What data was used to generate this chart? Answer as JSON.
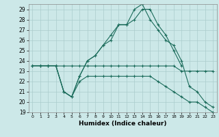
{
  "title": "",
  "xlabel": "Humidex (Indice chaleur)",
  "ylabel": "",
  "background_color": "#cce8e8",
  "grid_color": "#aacccc",
  "line_color": "#1a6b5a",
  "xlim": [
    -0.5,
    23.5
  ],
  "ylim": [
    19,
    29.5
  ],
  "yticks": [
    19,
    20,
    21,
    22,
    23,
    24,
    25,
    26,
    27,
    28,
    29
  ],
  "xticks": [
    0,
    1,
    2,
    3,
    4,
    5,
    6,
    7,
    8,
    9,
    10,
    11,
    12,
    13,
    14,
    15,
    16,
    17,
    18,
    19,
    20,
    21,
    22,
    23
  ],
  "series": [
    {
      "x": [
        0,
        1,
        2,
        3,
        4,
        5,
        6,
        7,
        8,
        9,
        10,
        11,
        12,
        13,
        14,
        15,
        16,
        17,
        18,
        19,
        20,
        21,
        22,
        23
      ],
      "y": [
        23.5,
        23.5,
        23.5,
        23.5,
        23.5,
        23.5,
        23.5,
        23.5,
        23.5,
        23.5,
        23.5,
        23.5,
        23.5,
        23.5,
        23.5,
        23.5,
        23.5,
        23.5,
        23.5,
        23.0,
        23.0,
        23.0,
        23.0,
        23.0
      ]
    },
    {
      "x": [
        0,
        1,
        2,
        3,
        4,
        5,
        6,
        7,
        8,
        9,
        10,
        11,
        12,
        13,
        14,
        15,
        16,
        17,
        18,
        19
      ],
      "y": [
        23.5,
        23.5,
        23.5,
        23.5,
        21.0,
        20.5,
        22.5,
        24.0,
        24.5,
        25.5,
        26.5,
        27.5,
        27.5,
        28.0,
        29.0,
        29.0,
        27.5,
        26.5,
        25.0,
        23.5
      ]
    },
    {
      "x": [
        0,
        1,
        2,
        3,
        4,
        5,
        6,
        7,
        8,
        9,
        10,
        11,
        12,
        13,
        14,
        15,
        16,
        17,
        18,
        19,
        20,
        21,
        22,
        23
      ],
      "y": [
        23.5,
        23.5,
        23.5,
        23.5,
        21.0,
        20.5,
        22.5,
        24.0,
        24.5,
        25.5,
        26.0,
        27.5,
        27.5,
        29.0,
        29.5,
        28.0,
        27.0,
        26.0,
        25.5,
        24.0,
        21.5,
        21.0,
        20.0,
        19.5
      ]
    },
    {
      "x": [
        0,
        1,
        2,
        3,
        4,
        5,
        6,
        7,
        8,
        9,
        10,
        11,
        12,
        13,
        14,
        15,
        16,
        17,
        18,
        19,
        20,
        21,
        22,
        23
      ],
      "y": [
        23.5,
        23.5,
        23.5,
        23.5,
        21.0,
        20.5,
        22.0,
        22.5,
        22.5,
        22.5,
        22.5,
        22.5,
        22.5,
        22.5,
        22.5,
        22.5,
        22.0,
        21.5,
        21.0,
        20.5,
        20.0,
        20.0,
        19.5,
        19.0
      ]
    }
  ]
}
